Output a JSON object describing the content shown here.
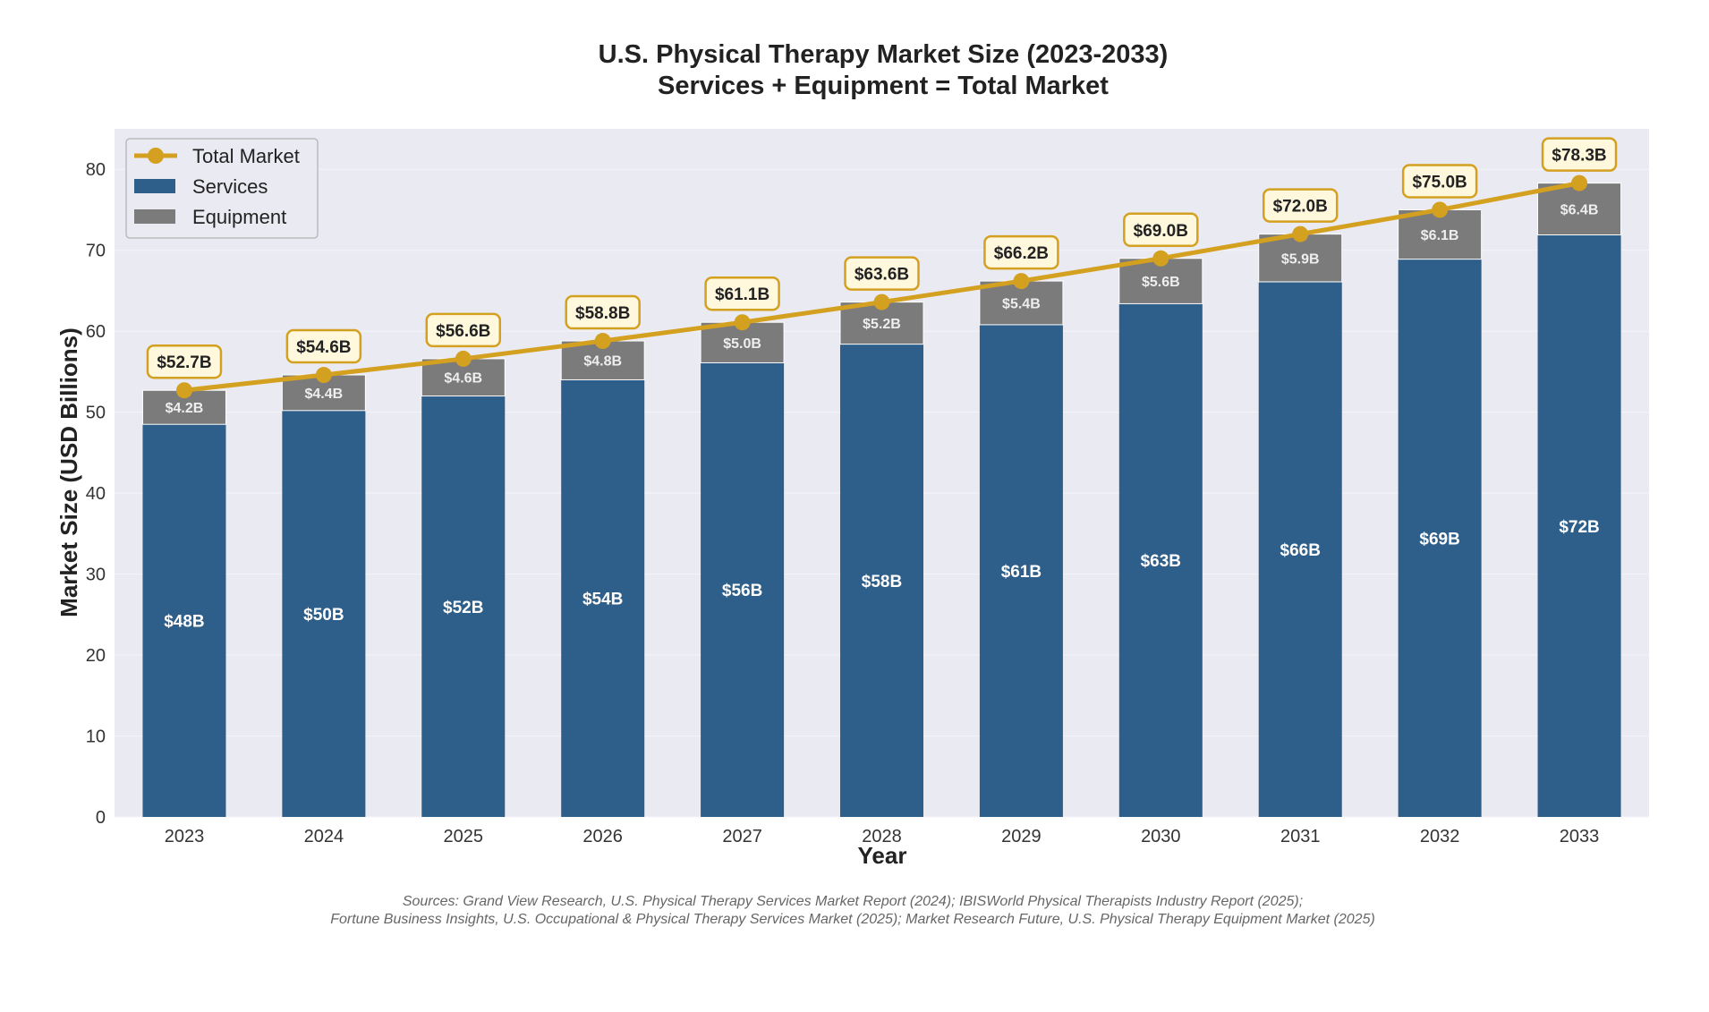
{
  "chart_data": {
    "type": "bar",
    "stacked": true,
    "title": "U.S. Physical Therapy Market Size (2023-2033)",
    "subtitle": "Services + Equipment = Total Market",
    "xlabel": "Year",
    "ylabel": "Market Size (USD Billions)",
    "ylim": [
      0,
      85
    ],
    "yticks": [
      0,
      10,
      20,
      30,
      40,
      50,
      60,
      70,
      80
    ],
    "grid": true,
    "legend_position": "top-left",
    "categories": [
      "2023",
      "2024",
      "2025",
      "2026",
      "2027",
      "2028",
      "2029",
      "2030",
      "2031",
      "2032",
      "2033"
    ],
    "series": [
      {
        "name": "Services",
        "type": "bar",
        "color": "#2e5f8a",
        "values": [
          48.5,
          50.2,
          52.0,
          54.0,
          56.1,
          58.4,
          60.8,
          63.4,
          66.1,
          68.9,
          71.9
        ],
        "labels": [
          "$48B",
          "$50B",
          "$52B",
          "$54B",
          "$56B",
          "$58B",
          "$61B",
          "$63B",
          "$66B",
          "$69B",
          "$72B"
        ]
      },
      {
        "name": "Equipment",
        "type": "bar",
        "color": "#7b7b7b",
        "values": [
          4.2,
          4.4,
          4.6,
          4.8,
          5.0,
          5.2,
          5.4,
          5.6,
          5.9,
          6.1,
          6.4
        ],
        "labels": [
          "$4.2B",
          "$4.4B",
          "$4.6B",
          "$4.8B",
          "$5.0B",
          "$5.2B",
          "$5.4B",
          "$5.6B",
          "$5.9B",
          "$6.1B",
          "$6.4B"
        ]
      },
      {
        "name": "Total Market",
        "type": "line",
        "color": "#d4a020",
        "values": [
          52.7,
          54.6,
          56.6,
          58.8,
          61.1,
          63.6,
          66.2,
          69.0,
          72.0,
          75.0,
          78.3
        ],
        "labels": [
          "$52.7B",
          "$54.6B",
          "$56.6B",
          "$58.8B",
          "$61.1B",
          "$63.6B",
          "$66.2B",
          "$69.0B",
          "$72.0B",
          "$75.0B",
          "$78.3B"
        ]
      }
    ],
    "source_lines": [
      "Sources: Grand View Research, U.S. Physical Therapy Services Market Report (2024); IBISWorld Physical Therapists Industry Report (2025);",
      "Fortune Business Insights, U.S. Occupational & Physical Therapy Services Market (2025); Market Research Future, U.S. Physical Therapy Equipment Market (2025)"
    ]
  }
}
